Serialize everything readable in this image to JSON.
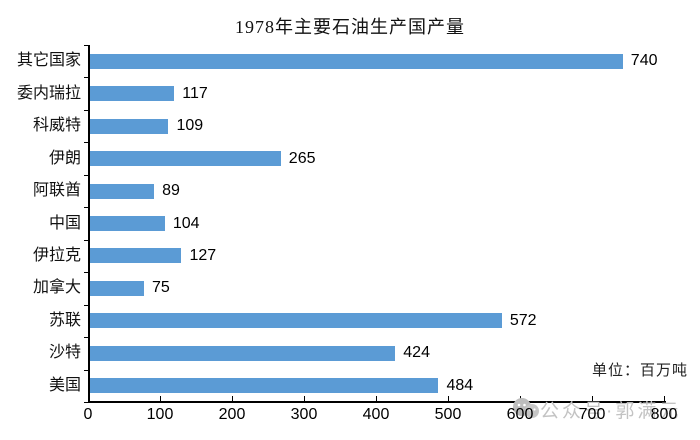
{
  "title": "1978年主要石油生产国产量",
  "unit_label": "单位：百万吨",
  "watermark": {
    "icon": "wechat-bubbles-icon",
    "text": "公众号·郭满元"
  },
  "colors": {
    "bar": "#5B9BD5",
    "axis": "#000000",
    "text": "#1a1a1a",
    "watermark": "#c3c3c3",
    "background": "#ffffff"
  },
  "chart_data": {
    "type": "bar",
    "orientation": "horizontal",
    "title": "1978年主要石油生产国产量",
    "categories": [
      "其它国家",
      "委内瑞拉",
      "科威特",
      "伊朗",
      "阿联酋",
      "中国",
      "伊拉克",
      "加拿大",
      "苏联",
      "沙特",
      "美国"
    ],
    "values": [
      740,
      117,
      109,
      265,
      89,
      104,
      127,
      75,
      572,
      424,
      484
    ],
    "value_labels": [
      "740",
      "117",
      "109",
      "265",
      "89",
      "104",
      "127",
      "75",
      "572",
      "424",
      "484"
    ],
    "xlabel": "",
    "ylabel": "",
    "unit": "百万吨",
    "xlim": [
      0,
      800
    ],
    "x_ticks": [
      0,
      100,
      200,
      300,
      400,
      500,
      600,
      700,
      800
    ],
    "grid": false,
    "legend": false,
    "data_labels": true
  }
}
